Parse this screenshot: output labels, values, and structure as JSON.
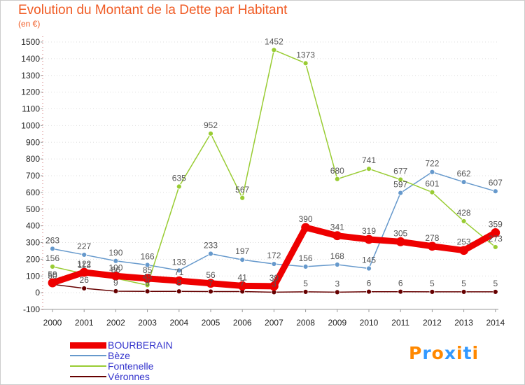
{
  "title": "Evolution du Montant de la Dette par Habitant",
  "unit": "(en €)",
  "logo": {
    "text": "Proxiti",
    "letter_colors": [
      "#ff8800",
      "#3399ff",
      "#ff8800",
      "#3399ff",
      "#ff8800",
      "#3399ff",
      "#ff8800"
    ]
  },
  "chart_data": {
    "type": "line",
    "x": [
      2000,
      2001,
      2002,
      2003,
      2004,
      2005,
      2006,
      2007,
      2008,
      2009,
      2010,
      2011,
      2012,
      2013,
      2014
    ],
    "y_ticks": [
      -100,
      0,
      100,
      200,
      300,
      400,
      500,
      600,
      700,
      800,
      900,
      1000,
      1100,
      1200,
      1300,
      1400,
      1500
    ],
    "ylim": [
      -100,
      1500
    ],
    "grid": "dotted horizontal",
    "legend_placement": "bottom-left",
    "series": [
      {
        "name": "BOURBERAIN",
        "color": "#ee0000",
        "width": 9,
        "values": [
          59,
          122,
          100,
          85,
          71,
          56,
          41,
          39,
          390,
          341,
          319,
          305,
          278,
          253,
          359
        ]
      },
      {
        "name": "Bèze",
        "color": "#6699cc",
        "width": 1.5,
        "values": [
          263,
          227,
          190,
          166,
          133,
          233,
          197,
          172,
          156,
          168,
          145,
          597,
          722,
          662,
          607
        ]
      },
      {
        "name": "Fontenelle",
        "color": "#99cc33",
        "width": 1.5,
        "values": [
          156,
          113,
          86,
          45,
          635,
          952,
          567,
          1452,
          1373,
          680,
          741,
          677,
          601,
          428,
          273
        ]
      },
      {
        "name": "Véronnes",
        "color": "#660000",
        "width": 1.5,
        "values": [
          50,
          26,
          9,
          8,
          8,
          7,
          7,
          3,
          5,
          3,
          6,
          6,
          5,
          5,
          5
        ]
      }
    ]
  }
}
